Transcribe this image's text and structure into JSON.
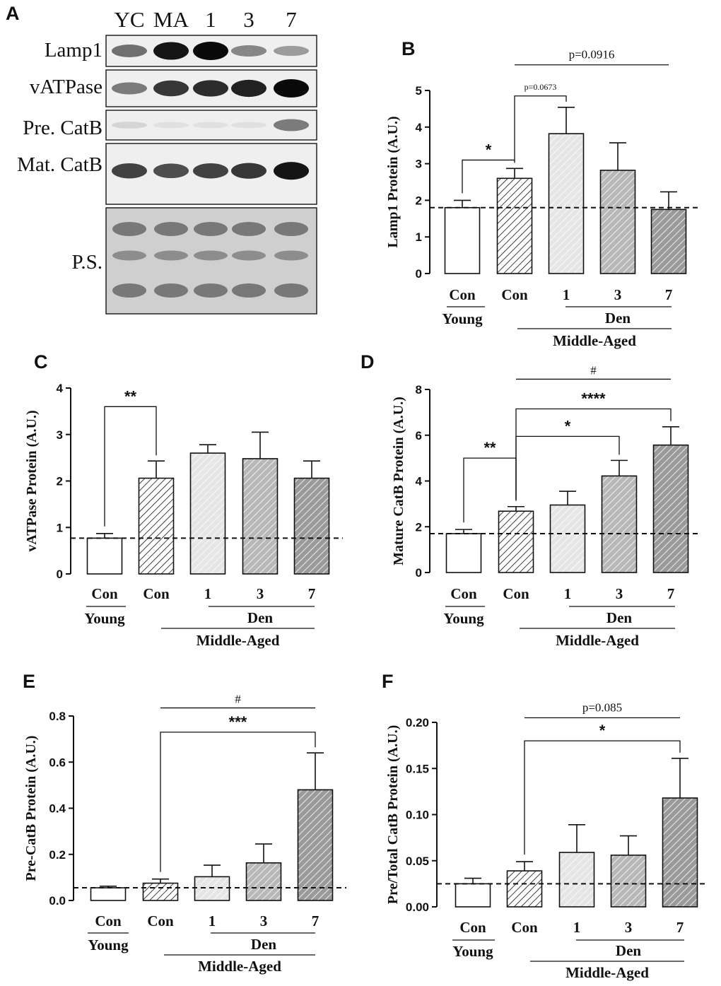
{
  "western_blot": {
    "panel_label": "A",
    "lanes": [
      "YC",
      "MA",
      "1",
      "3",
      "7"
    ],
    "rows": [
      {
        "label": "Lamp1",
        "intensity": [
          0.55,
          0.95,
          1.0,
          0.45,
          0.35
        ]
      },
      {
        "label": "vATPase",
        "intensity": [
          0.5,
          0.8,
          0.85,
          0.9,
          1.0
        ]
      },
      {
        "label": "Pre. CatB",
        "intensity": [
          0.1,
          0.05,
          0.05,
          0.05,
          0.5
        ]
      },
      {
        "label": "Mat. CatB",
        "intensity": [
          0.75,
          0.7,
          0.75,
          0.8,
          0.95
        ]
      },
      {
        "label": "P.S.",
        "intensity": [
          0.5,
          0.5,
          0.5,
          0.5,
          0.5
        ]
      }
    ]
  },
  "group_labels": {
    "con": "Con",
    "young": "Young",
    "den": "Den",
    "middle_aged": "Middle-Aged",
    "days": [
      "1",
      "3",
      "7"
    ]
  },
  "colors": {
    "young_fill": "#ffffff",
    "con_fill": "#ffffff",
    "day1_fill": "#e6e6e6",
    "day3_fill": "#b8b8b8",
    "day7_fill": "#9a9a9a",
    "axis": "#111111"
  },
  "chart_data": [
    {
      "panel": "B",
      "type": "bar",
      "categories": [
        "Con (Young)",
        "Con (Middle-Aged)",
        "Den 1",
        "Den 3",
        "Den 7"
      ],
      "values": [
        1.8,
        2.6,
        3.82,
        2.82,
        1.75
      ],
      "errors": [
        0.2,
        0.27,
        0.72,
        0.75,
        0.48
      ],
      "ylabel": "Lamp1 Protein (A.U.)",
      "ylim": [
        0,
        5
      ],
      "yticks": [
        "0",
        "1",
        "2",
        "3",
        "4",
        "5"
      ],
      "reference_line": 1.8,
      "annotations": [
        {
          "from": 0,
          "to": 1,
          "text": "*",
          "style": "bracket",
          "y": 3.1
        },
        {
          "from": 1,
          "to": 2,
          "text": "p=0.0673",
          "style": "bracket",
          "y": 4.85
        },
        {
          "from": 1,
          "to": 4,
          "text": "p=0.0916",
          "style": "line",
          "y": 5.7
        }
      ]
    },
    {
      "panel": "C",
      "type": "bar",
      "categories": [
        "Con (Young)",
        "Con (Middle-Aged)",
        "Den 1",
        "Den 3",
        "Den 7"
      ],
      "values": [
        0.77,
        2.06,
        2.6,
        2.48,
        2.06
      ],
      "errors": [
        0.1,
        0.37,
        0.18,
        0.57,
        0.37
      ],
      "ylabel": "vATPase Protein (A.U.)",
      "ylim": [
        0,
        4
      ],
      "yticks": [
        "0",
        "1",
        "2",
        "3",
        "4"
      ],
      "reference_line": 0.77,
      "annotations": [
        {
          "from": 0,
          "to": 1,
          "text": "**",
          "style": "bracket",
          "y": 3.6
        }
      ]
    },
    {
      "panel": "D",
      "type": "bar",
      "categories": [
        "Con (Young)",
        "Con (Middle-Aged)",
        "Den 1",
        "Den 3",
        "Den 7"
      ],
      "values": [
        1.7,
        2.68,
        2.95,
        4.22,
        5.57
      ],
      "errors": [
        0.18,
        0.2,
        0.6,
        0.68,
        0.8
      ],
      "ylabel": "Mature  CatB Protein (A.U.)",
      "ylim": [
        0,
        8
      ],
      "yticks": [
        "0",
        "2",
        "4",
        "6",
        "8"
      ],
      "reference_line": 1.7,
      "annotations": [
        {
          "from": 0,
          "to": 1,
          "text": "**",
          "style": "bracket",
          "y": 5.0
        },
        {
          "from": 1,
          "to": 3,
          "text": "*",
          "style": "bracket",
          "y": 5.95
        },
        {
          "from": 1,
          "to": 4,
          "text": "****",
          "style": "bracket",
          "y": 7.15
        },
        {
          "from": 1,
          "to": 4,
          "text": "#",
          "style": "line",
          "y": 8.45
        }
      ]
    },
    {
      "panel": "E",
      "type": "bar",
      "categories": [
        "Con (Young)",
        "Con (Middle-Aged)",
        "Den 1",
        "Den 3",
        "Den 7"
      ],
      "values": [
        0.055,
        0.075,
        0.103,
        0.163,
        0.48
      ],
      "errors": [
        0.007,
        0.018,
        0.05,
        0.082,
        0.16
      ],
      "ylabel": "Pre-CatB Protein (A.U.)",
      "ylim": [
        0,
        0.8
      ],
      "yticks": [
        "0.0",
        "0.2",
        "0.4",
        "0.6",
        "0.8"
      ],
      "reference_line": 0.055,
      "annotations": [
        {
          "from": 1,
          "to": 4,
          "text": "***",
          "style": "bracket",
          "y": 0.73
        },
        {
          "from": 1,
          "to": 4,
          "text": "#",
          "style": "line",
          "y": 0.835
        }
      ]
    },
    {
      "panel": "F",
      "type": "bar",
      "categories": [
        "Con (Young)",
        "Con (Middle-Aged)",
        "Den 1",
        "Den 3",
        "Den 7"
      ],
      "values": [
        0.025,
        0.039,
        0.059,
        0.056,
        0.118
      ],
      "errors": [
        0.006,
        0.01,
        0.03,
        0.021,
        0.043
      ],
      "ylabel": "Pre/Total CatB Protein (A.U.)",
      "ylim": [
        0,
        0.2
      ],
      "yticks": [
        "0.00",
        "0.05",
        "0.10",
        "0.15",
        "0.20"
      ],
      "reference_line": 0.025,
      "annotations": [
        {
          "from": 1,
          "to": 4,
          "text": "*",
          "style": "bracket",
          "y": 0.18
        },
        {
          "from": 1,
          "to": 4,
          "text": "p=0.085",
          "style": "line",
          "y": 0.205
        }
      ]
    }
  ]
}
